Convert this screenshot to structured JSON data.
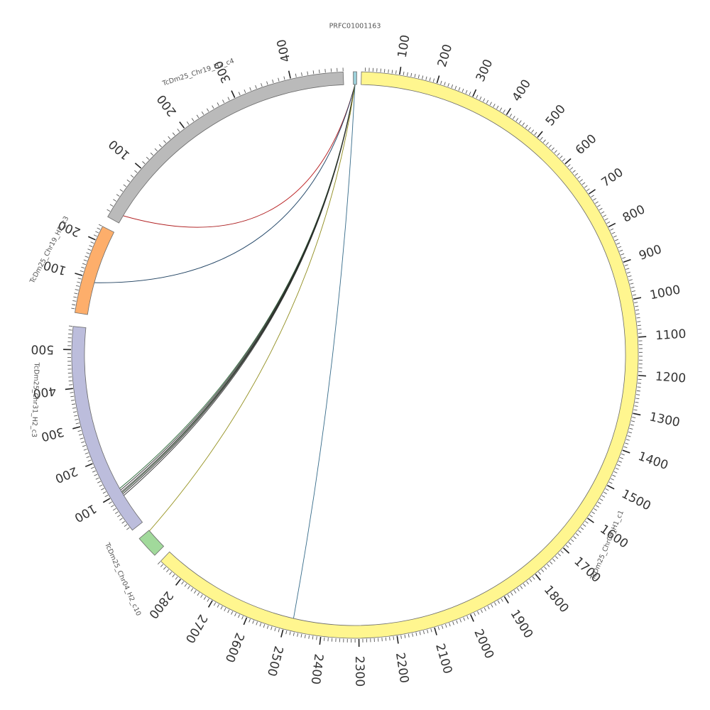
{
  "diagram": {
    "type": "circos",
    "sequences": [
      {
        "id": "PRFC01001163",
        "label": "PRFC01001163",
        "length": 0.6,
        "color": "#9ccfd9",
        "tick_every": 0,
        "label_every": 0
      },
      {
        "id": "chr08",
        "label": "TcDm25_Chr08_H1_c1",
        "length": 2870,
        "color": "#fff68f",
        "tick_every": 10,
        "label_every": 100
      },
      {
        "id": "chr04",
        "label": "TcDm25_Chr04_H2_c10",
        "length": 60,
        "color": "#a1d99b",
        "tick_every": 0,
        "label_every": 0
      },
      {
        "id": "chr31",
        "label": "TcDm25_Chr31_H2_c3",
        "length": 560,
        "color": "#bcbddc",
        "tick_every": 10,
        "label_every": 100
      },
      {
        "id": "chr19c3",
        "label": "TcDm25_Chr19_H2_c3",
        "length": 240,
        "color": "#fdae6b",
        "tick_every": 10,
        "label_every": 100
      },
      {
        "id": "chr19c4",
        "label": "TcDm25_Chr19_H2_c4",
        "length": 490,
        "color": "#bababa",
        "tick_every": 10,
        "label_every": 100
      }
    ],
    "links": [
      {
        "source": "PRFC01001163",
        "target": "chr19c4",
        "target_pos": 15,
        "color": "#e31a1c"
      },
      {
        "source": "PRFC01001163",
        "target": "chr19c3",
        "target_pos": 90,
        "color": "#1f4e79"
      },
      {
        "source": "PRFC01001163",
        "target": "chr31",
        "target_pos": 110,
        "color": "#2c7a3d"
      },
      {
        "source": "PRFC01001163",
        "target": "chr31",
        "target_pos": 105,
        "color": "#333333"
      },
      {
        "source": "PRFC01001163",
        "target": "chr31",
        "target_pos": 100,
        "color": "#444444"
      },
      {
        "source": "PRFC01001163",
        "target": "chr31",
        "target_pos": 97,
        "color": "#2f4f2f"
      },
      {
        "source": "PRFC01001163",
        "target": "chr31",
        "target_pos": 93,
        "color": "#222222"
      },
      {
        "source": "PRFC01001163",
        "target": "chr31",
        "target_pos": 88,
        "color": "#3a3a3a"
      },
      {
        "source": "PRFC01001163",
        "target": "chr04",
        "target_pos": 58,
        "color": "#bdb82a"
      },
      {
        "source": "PRFC01001163",
        "target": "chr08",
        "target_pos": 2480,
        "color": "#4a90b8"
      }
    ]
  }
}
